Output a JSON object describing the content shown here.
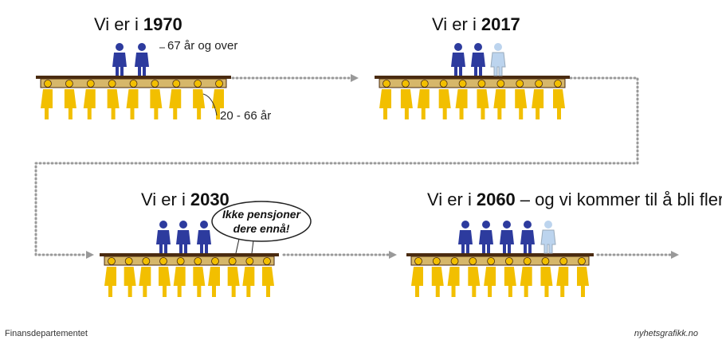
{
  "panels": [
    {
      "prefix": "Vi er i",
      "year": "1970"
    },
    {
      "prefix": "Vi er i",
      "year": "2017"
    },
    {
      "prefix": "Vi er i",
      "year": "2030"
    },
    {
      "prefix": "Vi er i",
      "year": "2060",
      "suffix": "– og vi kommer til å bli flere"
    }
  ],
  "labels": {
    "elderly": "67 år og over",
    "workers": "20 - 66 år"
  },
  "bubble": [
    "Ikke pensjoner",
    "dere ennå!"
  ],
  "footer": {
    "source": "Finansdepartementet",
    "credit": "nyhetsgrafikk.no"
  }
}
